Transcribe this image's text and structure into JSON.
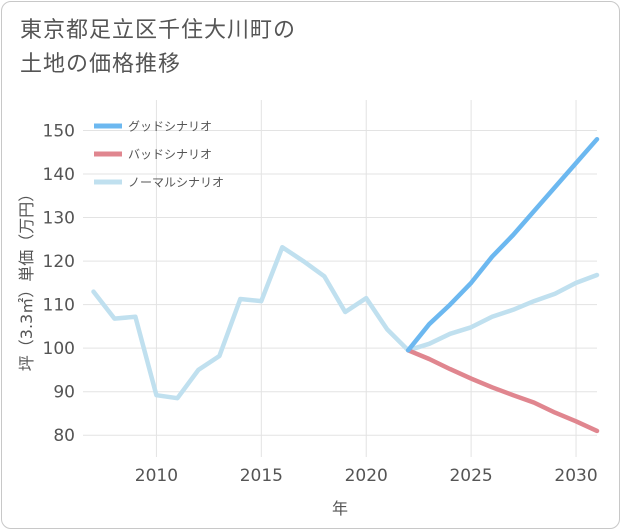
{
  "title_lines": [
    "東京都足立区千住大川町の",
    "土地の価格推移"
  ],
  "chart_data": {
    "type": "line",
    "title": "東京都足立区千住大川町の土地の価格推移",
    "xlabel": "年",
    "ylabel": "坪（3.3㎡）単価（万円）",
    "xlim": [
      2006.5,
      2031
    ],
    "ylim": [
      75,
      157
    ],
    "x_ticks": [
      2010,
      2015,
      2020,
      2025,
      2030
    ],
    "y_ticks": [
      80,
      90,
      100,
      110,
      120,
      130,
      140,
      150
    ],
    "grid": true,
    "legend_position": "top-left",
    "series": [
      {
        "name": "グッドシナリオ",
        "color": "#6cb8f0",
        "x": [
          2022,
          2023,
          2024,
          2025,
          2026,
          2027,
          2028,
          2029,
          2030,
          2031
        ],
        "values": [
          99.5,
          105.5,
          110,
          115,
          121,
          126,
          131.5,
          137,
          142.5,
          148
        ]
      },
      {
        "name": "バッドシナリオ",
        "color": "#e0868f",
        "x": [
          2022,
          2023,
          2024,
          2025,
          2026,
          2027,
          2028,
          2029,
          2030,
          2031
        ],
        "values": [
          99.5,
          97.5,
          95.2,
          93,
          91,
          89.2,
          87.5,
          85.2,
          83.2,
          81
        ]
      },
      {
        "name": "ノーマルシナリオ",
        "color": "#c0e0ef",
        "x": [
          2007,
          2008,
          2009,
          2010,
          2011,
          2012,
          2013,
          2014,
          2015,
          2016,
          2017,
          2018,
          2019,
          2020,
          2021,
          2022,
          2023,
          2024,
          2025,
          2026,
          2027,
          2028,
          2029,
          2030,
          2031
        ],
        "values": [
          113,
          106.8,
          107.2,
          89.2,
          88.5,
          95,
          98.2,
          111.3,
          110.8,
          123.2,
          120,
          116.5,
          108.3,
          111.5,
          104.3,
          99.5,
          101,
          103.3,
          104.8,
          107.2,
          108.8,
          110.8,
          112.5,
          115,
          116.8
        ]
      }
    ]
  }
}
